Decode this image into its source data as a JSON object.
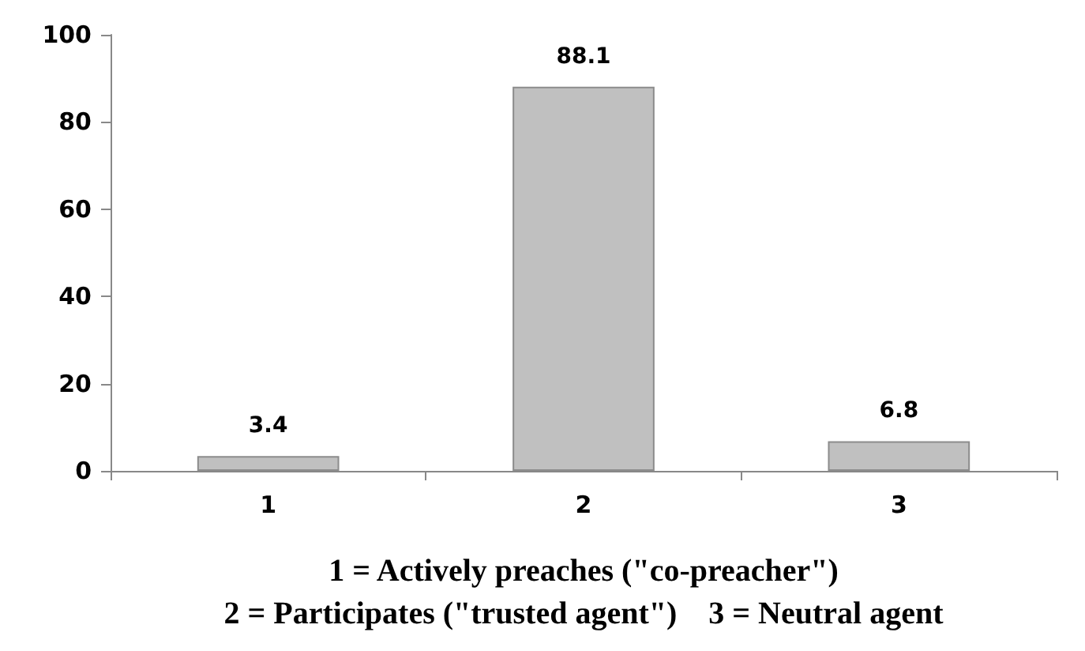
{
  "chart_data": {
    "type": "bar",
    "categories": [
      "1",
      "2",
      "3"
    ],
    "values": [
      3.4,
      88.1,
      6.8
    ],
    "color": "#c0c0c0",
    "ylim": [
      0,
      100
    ],
    "yticks": [
      0,
      20,
      40,
      60,
      80,
      100
    ],
    "grid": false,
    "data_labels": true,
    "xlabel": "1 = Actively preaches (\"co-preacher\")\n2 = Participates (\"trusted agent\")    3 = Neutral agent"
  }
}
